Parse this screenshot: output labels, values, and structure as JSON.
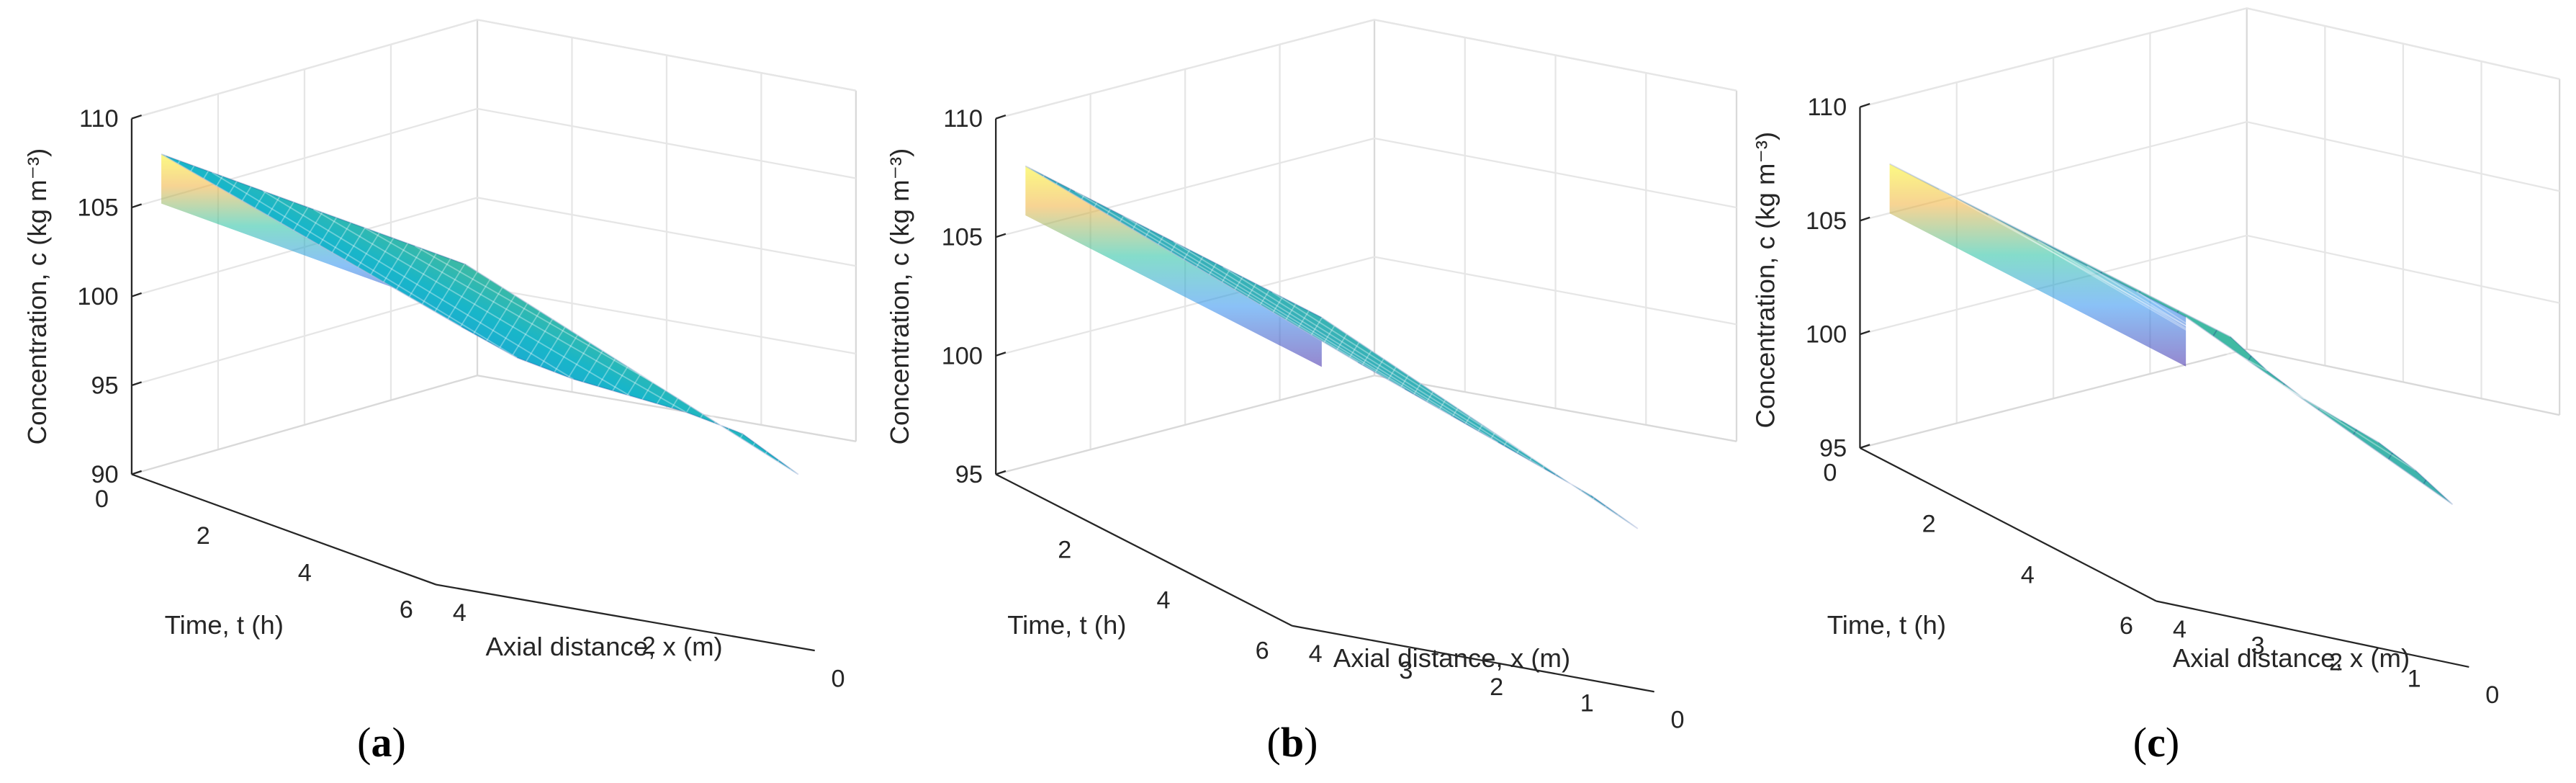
{
  "figure": {
    "panels": [
      "(a)",
      "(b)",
      "(c)"
    ],
    "panel_letters": [
      "a",
      "b",
      "c"
    ]
  },
  "chart_data": [
    {
      "type": "surface",
      "panel": "a",
      "xlabel": "Axial distance, x (m)",
      "ylabel": "Time, t (h)",
      "zlabel": "Concentration, c (kg m⁻³)",
      "xlim": [
        0,
        4
      ],
      "ylim": [
        0,
        6
      ],
      "zlim": [
        90,
        110
      ],
      "xticks": [
        "4",
        "2",
        "0"
      ],
      "xtick_values": [
        4,
        2,
        0
      ],
      "yticks": [
        "0",
        "2",
        "4",
        "6"
      ],
      "ytick_values": [
        0,
        2,
        4,
        6
      ],
      "zticks": [
        "90",
        "95",
        "100",
        "105",
        "110"
      ],
      "ztick_values": [
        90,
        95,
        100,
        105,
        110
      ],
      "surface_profile": {
        "t": [
          0,
          1,
          2,
          3,
          4,
          5,
          6
        ],
        "c_inlet": [
          108,
          108,
          108,
          108,
          108,
          108,
          108
        ],
        "c_outlet": [
          95,
          96.5,
          99,
          102,
          105,
          107.5,
          108
        ]
      }
    },
    {
      "type": "surface",
      "panel": "b",
      "xlabel": "Axial distance, x (m)",
      "ylabel": "Time, t (h)",
      "zlabel": "Concentration, c (kg m⁻³)",
      "xlim": [
        0,
        4
      ],
      "ylim": [
        0,
        6
      ],
      "zlim": [
        95,
        110
      ],
      "xticks": [
        "4",
        "3",
        "2",
        "1",
        "0"
      ],
      "xtick_values": [
        4,
        3,
        2,
        1,
        0
      ],
      "yticks": [
        "2",
        "4",
        "6"
      ],
      "ytick_values": [
        2,
        4,
        6
      ],
      "zticks": [
        "95",
        "100",
        "105",
        "110"
      ],
      "ztick_values": [
        95,
        100,
        105,
        110
      ],
      "surface_profile": {
        "t": [
          0,
          1,
          2,
          3,
          4,
          5,
          6
        ],
        "c_inlet": [
          108,
          108,
          108,
          108,
          108,
          108,
          108
        ],
        "c_outlet": [
          96,
          98,
          100,
          102,
          104,
          106,
          107.5
        ]
      }
    },
    {
      "type": "surface",
      "panel": "c",
      "xlabel": "Axial distance, x (m)",
      "ylabel": "Time, t (h)",
      "zlabel": "Concentration, c (kg m⁻³)",
      "xlim": [
        0,
        4
      ],
      "ylim": [
        0,
        6
      ],
      "zlim": [
        95,
        110
      ],
      "xticks": [
        "4",
        "3",
        "2",
        "1",
        "0"
      ],
      "xtick_values": [
        4,
        3,
        2,
        1,
        0
      ],
      "yticks": [
        "0",
        "2",
        "4",
        "6"
      ],
      "ytick_values": [
        0,
        2,
        4,
        6
      ],
      "zticks": [
        "95",
        "100",
        "105",
        "110"
      ],
      "ztick_values": [
        95,
        100,
        105,
        110
      ],
      "surface_profile": {
        "t": [
          0,
          1,
          2,
          3,
          4,
          5,
          6
        ],
        "c_inlet": [
          107.5,
          107.5,
          107.5,
          107.5,
          107.5,
          107.5,
          107.5
        ],
        "c_outlet": [
          96,
          97.5,
          99.5,
          102,
          104.5,
          106.5,
          108
        ]
      }
    }
  ]
}
